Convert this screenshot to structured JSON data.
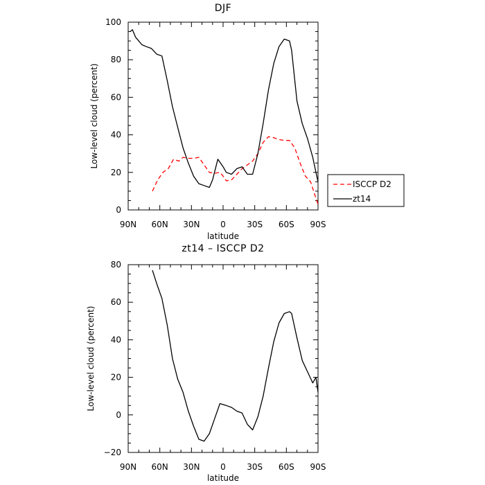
{
  "chart_data": [
    {
      "type": "line",
      "title": "DJF",
      "xlabel": "latitude",
      "ylabel": "Low-level cloud (percent)",
      "xlim": [
        90,
        -90
      ],
      "ylim": [
        0,
        100
      ],
      "x_tick_values": [
        90,
        60,
        30,
        0,
        -30,
        -60,
        -90
      ],
      "x_tick_labels": [
        "90N",
        "60N",
        "30N",
        "0",
        "30S",
        "60S",
        "90S"
      ],
      "y_tick_values": [
        0,
        20,
        40,
        60,
        80,
        100
      ],
      "y_tick_labels": [
        "0",
        "20",
        "40",
        "60",
        "80",
        "100"
      ],
      "legend_position": "right",
      "series": [
        {
          "name": "ISCCP D2",
          "color": "#ff0000",
          "style": "dashed",
          "points": [
            [
              67,
              10
            ],
            [
              62,
              16
            ],
            [
              57,
              20
            ],
            [
              52,
              22
            ],
            [
              47,
              27
            ],
            [
              42,
              26
            ],
            [
              38,
              28
            ],
            [
              33,
              27.5
            ],
            [
              28,
              27.5
            ],
            [
              23,
              28
            ],
            [
              18,
              24
            ],
            [
              13,
              20
            ],
            [
              8,
              19.5
            ],
            [
              3,
              20
            ],
            [
              0,
              18
            ],
            [
              -3,
              15.5
            ],
            [
              -8,
              16
            ],
            [
              -13,
              19
            ],
            [
              -18,
              22
            ],
            [
              -23,
              24
            ],
            [
              -28,
              26
            ],
            [
              -33,
              30
            ],
            [
              -38,
              36
            ],
            [
              -43,
              39
            ],
            [
              -48,
              38.5
            ],
            [
              -53,
              37.5
            ],
            [
              -58,
              37
            ],
            [
              -63,
              37
            ],
            [
              -68,
              33
            ],
            [
              -73,
              25
            ],
            [
              -78,
              18
            ],
            [
              -83,
              15
            ],
            [
              -87,
              8
            ],
            [
              -90,
              3
            ]
          ]
        },
        {
          "name": "zt14",
          "color": "#000000",
          "style": "solid",
          "points": [
            [
              88,
              95
            ],
            [
              86,
              96
            ],
            [
              83,
              92
            ],
            [
              80,
              90
            ],
            [
              77,
              88
            ],
            [
              73,
              87
            ],
            [
              68,
              86
            ],
            [
              63,
              83
            ],
            [
              58,
              82
            ],
            [
              53,
              69
            ],
            [
              48,
              55
            ],
            [
              43,
              44
            ],
            [
              38,
              33
            ],
            [
              33,
              25
            ],
            [
              28,
              18
            ],
            [
              23,
              14
            ],
            [
              18,
              13
            ],
            [
              13,
              12
            ],
            [
              10,
              16
            ],
            [
              5,
              27
            ],
            [
              0,
              23
            ],
            [
              -3,
              20
            ],
            [
              -8,
              19
            ],
            [
              -13,
              22
            ],
            [
              -18,
              23
            ],
            [
              -23,
              19
            ],
            [
              -28,
              19
            ],
            [
              -33,
              30
            ],
            [
              -38,
              46
            ],
            [
              -43,
              64
            ],
            [
              -48,
              78
            ],
            [
              -53,
              87
            ],
            [
              -58,
              91
            ],
            [
              -63,
              90
            ],
            [
              -65,
              85
            ],
            [
              -70,
              58
            ],
            [
              -75,
              46
            ],
            [
              -80,
              38
            ],
            [
              -85,
              28
            ],
            [
              -88,
              20
            ],
            [
              -90,
              15
            ]
          ]
        }
      ]
    },
    {
      "type": "line",
      "title": "zt14 – ISCCP D2",
      "xlabel": "latitude",
      "ylabel": "Low-level cloud (percent)",
      "xlim": [
        90,
        -90
      ],
      "ylim": [
        -20,
        80
      ],
      "x_tick_values": [
        90,
        60,
        30,
        0,
        -30,
        -60,
        -90
      ],
      "x_tick_labels": [
        "90N",
        "60N",
        "30N",
        "0",
        "30S",
        "60S",
        "90S"
      ],
      "y_tick_values": [
        -20,
        0,
        20,
        40,
        60,
        80
      ],
      "y_tick_labels": [
        "−20",
        "0",
        "20",
        "40",
        "60",
        "80"
      ],
      "series": [
        {
          "color": "#000000",
          "style": "solid",
          "points": [
            [
              67,
              77
            ],
            [
              63,
              70
            ],
            [
              58,
              62
            ],
            [
              53,
              48
            ],
            [
              48,
              30
            ],
            [
              43,
              19
            ],
            [
              38,
              12
            ],
            [
              33,
              2
            ],
            [
              28,
              -6
            ],
            [
              23,
              -13
            ],
            [
              18,
              -14
            ],
            [
              13,
              -10
            ],
            [
              8,
              -2
            ],
            [
              3,
              6
            ],
            [
              0,
              5.5
            ],
            [
              -3,
              5
            ],
            [
              -8,
              4
            ],
            [
              -13,
              2
            ],
            [
              -18,
              1
            ],
            [
              -23,
              -5
            ],
            [
              -28,
              -8
            ],
            [
              -33,
              -1
            ],
            [
              -38,
              10
            ],
            [
              -43,
              25
            ],
            [
              -48,
              39
            ],
            [
              -53,
              49
            ],
            [
              -58,
              54
            ],
            [
              -63,
              55
            ],
            [
              -65,
              54
            ],
            [
              -70,
              41
            ],
            [
              -75,
              29
            ],
            [
              -80,
              23
            ],
            [
              -85,
              17
            ],
            [
              -88,
              20
            ],
            [
              -90,
              12
            ]
          ]
        }
      ]
    }
  ]
}
